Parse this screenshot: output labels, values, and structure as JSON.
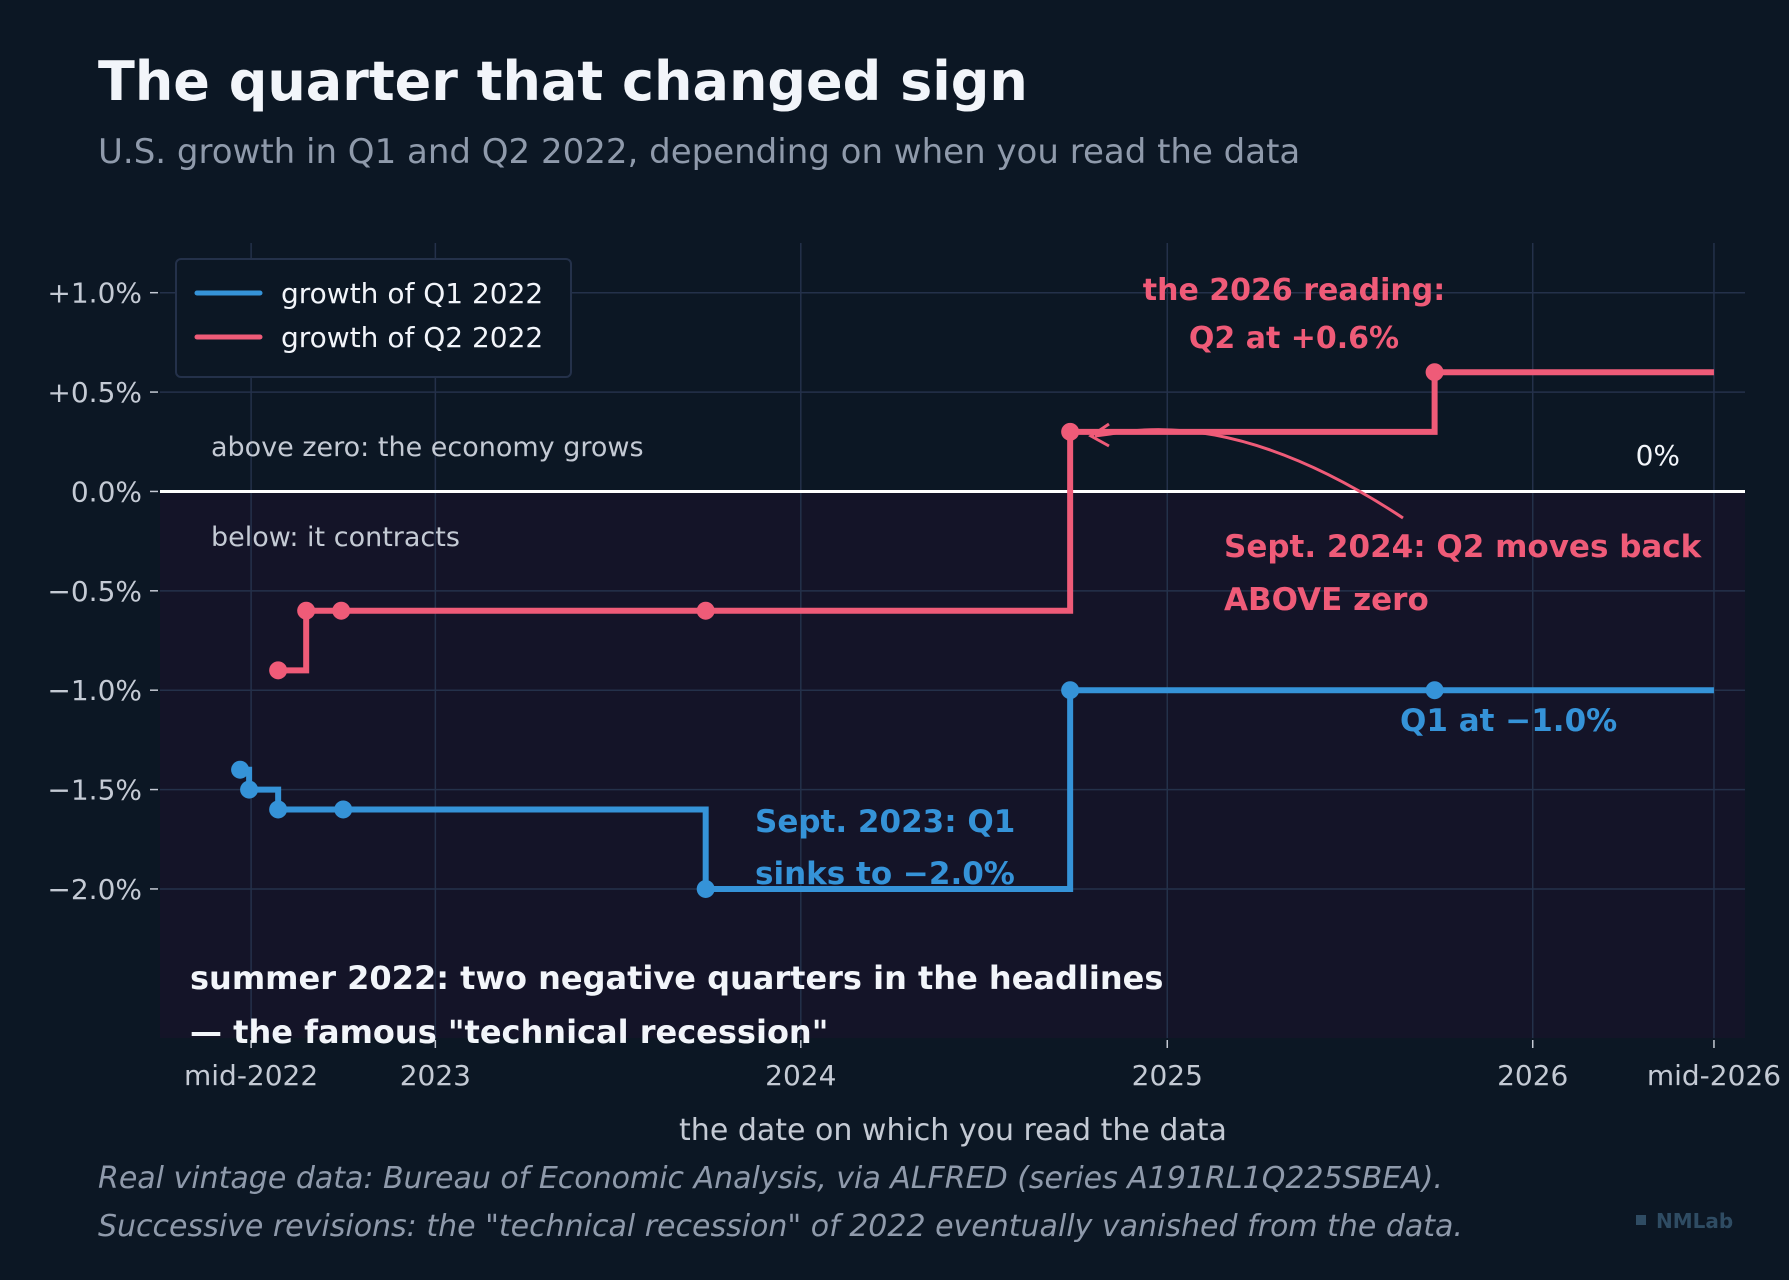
{
  "colors": {
    "background": "#0c1724",
    "plot_background": "#141428",
    "grid": "#24314a",
    "zero_line": "#ffffff",
    "q1": "#3593d8",
    "q2": "#ef5b78",
    "text_primary": "#f2f5fa",
    "text_secondary": "#c4cad4",
    "text_muted": "#8f9aab",
    "logo": "#2f4c63"
  },
  "chart_data": {
    "type": "line",
    "step": "post",
    "title": "The quarter that changed sign",
    "subtitle": "U.S. growth in Q1 and Q2 2022, depending on when you read the data",
    "xlabel": "the date on which you read the data",
    "ylabel": "",
    "x_type": "date",
    "xlim": [
      "2022-04-01",
      "2026-08-01"
    ],
    "ylim": [
      -2.75,
      1.25
    ],
    "grid": true,
    "x_ticks": [
      {
        "date": "2022-07-01",
        "label": "mid-2022"
      },
      {
        "date": "2023-01-01",
        "label": "2023"
      },
      {
        "date": "2024-01-01",
        "label": "2024"
      },
      {
        "date": "2025-01-01",
        "label": "2025"
      },
      {
        "date": "2026-01-01",
        "label": "2026"
      },
      {
        "date": "2026-07-01",
        "label": "mid-2026"
      }
    ],
    "y_ticks": [
      {
        "value": 1.0,
        "label": "+1.0%"
      },
      {
        "value": 0.5,
        "label": "+0.5%"
      },
      {
        "value": 0.0,
        "label": "0.0%"
      },
      {
        "value": -0.5,
        "label": "−0.5%"
      },
      {
        "value": -1.0,
        "label": "−1.0%"
      },
      {
        "value": -1.5,
        "label": "−1.5%"
      },
      {
        "value": -2.0,
        "label": "−2.0%"
      }
    ],
    "legend": {
      "position": "top-left",
      "entries": [
        "growth of Q1 2022",
        "growth of Q2 2022"
      ]
    },
    "series": [
      {
        "name": "growth of Q1 2022",
        "key": "q1",
        "points": [
          {
            "x": "2022-06-20",
            "y": -1.4
          },
          {
            "x": "2022-06-29",
            "y": -1.5
          },
          {
            "x": "2022-07-28",
            "y": -1.6
          },
          {
            "x": "2022-10-01",
            "y": -1.6
          },
          {
            "x": "2023-09-28",
            "y": -2.0
          },
          {
            "x": "2024-09-26",
            "y": -1.0
          },
          {
            "x": "2025-09-25",
            "y": -1.0
          }
        ],
        "end_x": "2026-07-01"
      },
      {
        "name": "growth of Q2 2022",
        "key": "q2",
        "points": [
          {
            "x": "2022-07-28",
            "y": -0.9
          },
          {
            "x": "2022-08-25",
            "y": -0.6
          },
          {
            "x": "2022-09-29",
            "y": -0.6
          },
          {
            "x": "2023-09-28",
            "y": -0.6
          },
          {
            "x": "2024-09-26",
            "y": 0.3
          },
          {
            "x": "2025-09-25",
            "y": 0.6
          }
        ],
        "end_x": "2026-07-01"
      }
    ],
    "zero_line_label": "0%",
    "region_labels": {
      "above": "above zero: the economy grows",
      "below": "below: it contracts"
    },
    "annotations": {
      "reading_2026": {
        "lines": [
          "the 2026 reading:",
          "Q2 at +0.6%"
        ]
      },
      "sept_2024": {
        "lines": [
          "Sept. 2024: Q2 moves back",
          "ABOVE zero"
        ]
      },
      "q1_final": {
        "lines": [
          "Q1 at −1.0%"
        ]
      },
      "sept_2023": {
        "lines": [
          "Sept. 2023: Q1",
          "sinks to −2.0%"
        ]
      },
      "summer_2022": {
        "lines": [
          "summer 2022: two negative quarters in the headlines",
          "— the famous \"technical recession\""
        ]
      }
    },
    "footer": [
      "Real vintage data: Bureau of Economic Analysis, via ALFRED (series A191RL1Q225SBEA).",
      "Successive revisions: the \"technical recession\" of 2022 eventually vanished from the data."
    ],
    "logo": "NMLab"
  }
}
